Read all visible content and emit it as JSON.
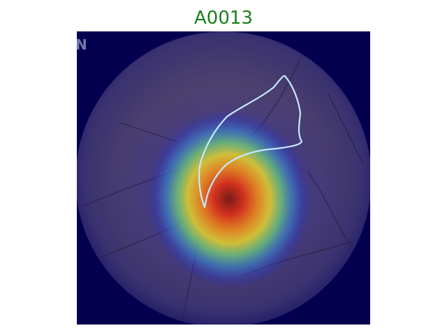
{
  "figure": {
    "title": "A0013",
    "title_color": "#1a7f1a"
  },
  "image": {
    "description_icon": "endoscopy-heatmap-image",
    "overlay": "attention-heatmap",
    "contour_color": "#c8e8ff",
    "corner_mark": "N"
  }
}
